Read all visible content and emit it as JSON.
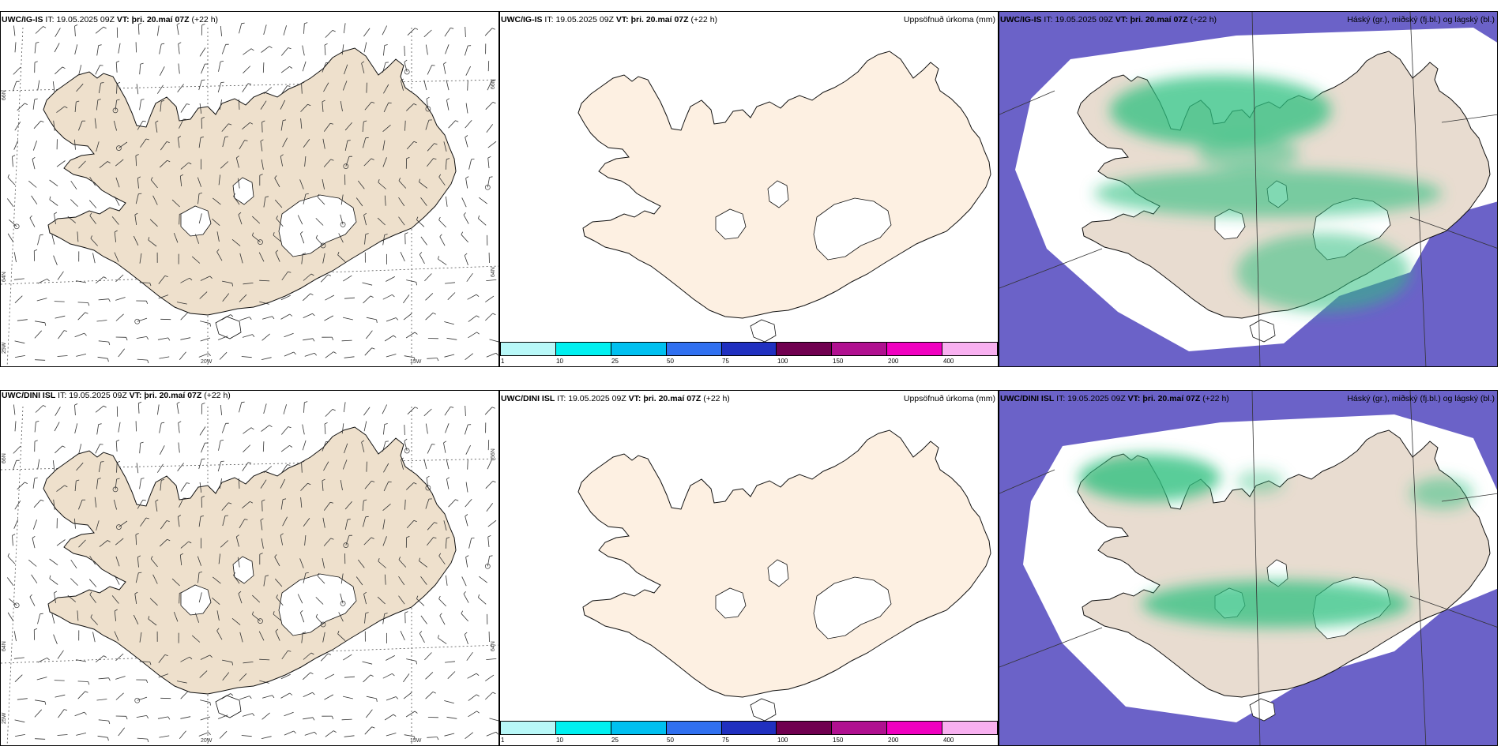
{
  "rows": [
    {
      "model_code": "UWC/IG-IS",
      "issue_label": "IT:",
      "issue_time": "19.05.2025 09Z",
      "valid_label": "VT:",
      "valid_time": "þri. 20.maí 07Z",
      "lead": "(+22 h)"
    },
    {
      "model_code": "UWC/DINI ISL",
      "issue_label": "IT:",
      "issue_time": "19.05.2025 09Z",
      "valid_label": "VT:",
      "valid_time": "þri. 20.maí 07Z",
      "lead": "(+22 h)"
    }
  ],
  "panels": {
    "precip_title": "Uppsöfnuð úrkoma (mm)",
    "cloud_title": "Háský (gr.), miðský (fj.bl.) og lágský (bl.)"
  },
  "axis_labels": {
    "lat_66": "66N",
    "lat_64": "64N",
    "lon_25w": "25W",
    "lon_20w": "20W",
    "lon_15w": "15W",
    "right_66": "66N",
    "right_64": "64N"
  },
  "colorbar": {
    "colors": [
      "#b8f8f8",
      "#00f0f0",
      "#00c0f0",
      "#3070f0",
      "#2030c0",
      "#700050",
      "#b01090",
      "#f000c0",
      "#f8b0f0"
    ],
    "ticks": [
      "1",
      "10",
      "25",
      "50",
      "75",
      "100",
      "150",
      "200",
      "400"
    ]
  },
  "colors": {
    "land_wind": "#eee0cc",
    "land_precip": "#fdf0e2",
    "land_cloud": "#e8dcd0",
    "high_cloud": "#6b62c8",
    "mid_cloud": "#2ec080",
    "low_cloud": "#ffffff"
  }
}
